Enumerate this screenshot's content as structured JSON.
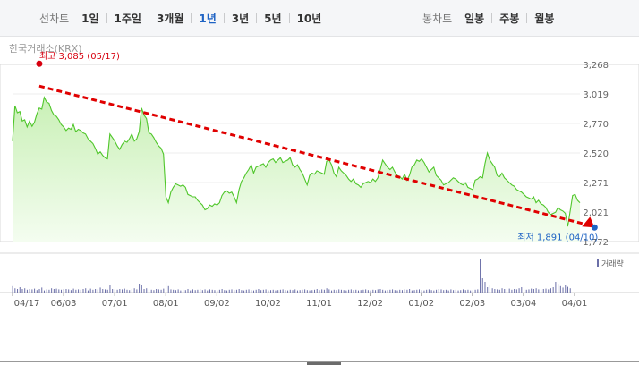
{
  "toolbar": {
    "period_label": "선차트",
    "periods": [
      "1일",
      "1주일",
      "3개월",
      "1년",
      "3년",
      "5년",
      "10년"
    ],
    "active_period": "1년",
    "candle_label": "봉차트",
    "candles": [
      "일봉",
      "주봉",
      "월봉"
    ]
  },
  "source": "한국거래소(KRX)",
  "chart_data": {
    "type": "area",
    "y_ticks": [
      "3,268",
      "3,019",
      "2,770",
      "2,520",
      "2,271",
      "2,021",
      "1,772"
    ],
    "ylim": [
      1772,
      3268
    ],
    "x_tick_labels": [
      "04/17",
      "06/03",
      "07/01",
      "08/01",
      "09/02",
      "10/02",
      "11/01",
      "12/02",
      "01/02",
      "02/03",
      "03/04",
      "04/01"
    ],
    "series": [
      {
        "values": [
          2620,
          2920,
          2860,
          2870,
          2790,
          2800,
          2740,
          2790,
          2745,
          2780,
          2850,
          2900,
          2890,
          2990,
          2950,
          2940,
          2880,
          2840,
          2830,
          2800,
          2760,
          2740,
          2710,
          2730,
          2720,
          2760,
          2700,
          2720,
          2710,
          2690,
          2680,
          2640,
          2620,
          2600,
          2560,
          2510,
          2530,
          2500,
          2480,
          2470,
          2680,
          2650,
          2620,
          2580,
          2550,
          2590,
          2620,
          2610,
          2640,
          2680,
          2620,
          2640,
          2700,
          2900,
          2840,
          2810,
          2690,
          2680,
          2650,
          2610,
          2580,
          2560,
          2510,
          2150,
          2100,
          2190,
          2230,
          2260,
          2250,
          2240,
          2250,
          2230,
          2170,
          2160,
          2150,
          2150,
          2120,
          2100,
          2080,
          2040,
          2050,
          2080,
          2070,
          2090,
          2080,
          2100,
          2160,
          2190,
          2200,
          2180,
          2190,
          2150,
          2100,
          2210,
          2280,
          2310,
          2350,
          2380,
          2420,
          2350,
          2400,
          2410,
          2420,
          2430,
          2400,
          2440,
          2460,
          2470,
          2440,
          2460,
          2480,
          2440,
          2450,
          2460,
          2480,
          2420,
          2400,
          2420,
          2380,
          2350,
          2300,
          2250,
          2330,
          2350,
          2340,
          2370,
          2360,
          2350,
          2340,
          2450,
          2460,
          2420,
          2350,
          2320,
          2400,
          2370,
          2350,
          2330,
          2300,
          2280,
          2300,
          2260,
          2250,
          2230,
          2260,
          2270,
          2280,
          2270,
          2300,
          2280,
          2310,
          2380,
          2460,
          2430,
          2400,
          2380,
          2400,
          2360,
          2330,
          2320,
          2300,
          2340,
          2290,
          2330,
          2400,
          2420,
          2460,
          2450,
          2470,
          2440,
          2400,
          2360,
          2380,
          2400,
          2330,
          2310,
          2290,
          2250,
          2260,
          2270,
          2290,
          2310,
          2300,
          2280,
          2260,
          2250,
          2270,
          2230,
          2220,
          2210,
          2290,
          2300,
          2320,
          2310,
          2430,
          2520,
          2460,
          2430,
          2400,
          2330,
          2320,
          2350,
          2310,
          2290,
          2270,
          2250,
          2240,
          2210,
          2200,
          2190,
          2170,
          2150,
          2140,
          2130,
          2150,
          2100,
          2120,
          2090,
          2080,
          2060,
          2020,
          2000,
          2010,
          2020,
          2060,
          2040,
          2030,
          2010,
          1900,
          2030,
          2160,
          2170,
          2120,
          2100
        ]
      }
    ],
    "volume": [
      0.18,
      0.12,
      0.1,
      0.15,
      0.1,
      0.12,
      0.08,
      0.1,
      0.09,
      0.11,
      0.07,
      0.1,
      0.14,
      0.06,
      0.09,
      0.08,
      0.12,
      0.1,
      0.11,
      0.09,
      0.08,
      0.1,
      0.1,
      0.09,
      0.07,
      0.11,
      0.08,
      0.09,
      0.08,
      0.1,
      0.12,
      0.06,
      0.11,
      0.08,
      0.1,
      0.09,
      0.14,
      0.1,
      0.09,
      0.08,
      0.2,
      0.1,
      0.09,
      0.08,
      0.1,
      0.09,
      0.11,
      0.08,
      0.07,
      0.1,
      0.12,
      0.09,
      0.25,
      0.2,
      0.1,
      0.12,
      0.09,
      0.08,
      0.07,
      0.1,
      0.09,
      0.08,
      0.11,
      0.3,
      0.18,
      0.09,
      0.08,
      0.07,
      0.09,
      0.06,
      0.08,
      0.07,
      0.1,
      0.06,
      0.09,
      0.07,
      0.08,
      0.1,
      0.07,
      0.09,
      0.06,
      0.09,
      0.08,
      0.07,
      0.06,
      0.08,
      0.1,
      0.07,
      0.06,
      0.08,
      0.09,
      0.07,
      0.08,
      0.1,
      0.07,
      0.06,
      0.08,
      0.09,
      0.07,
      0.06,
      0.08,
      0.1,
      0.07,
      0.08,
      0.09,
      0.06,
      0.07,
      0.08,
      0.06,
      0.07,
      0.08,
      0.09,
      0.07,
      0.06,
      0.08,
      0.07,
      0.09,
      0.06,
      0.07,
      0.08,
      0.09,
      0.07,
      0.06,
      0.07,
      0.08,
      0.1,
      0.07,
      0.09,
      0.08,
      0.12,
      0.09,
      0.06,
      0.08,
      0.07,
      0.09,
      0.08,
      0.07,
      0.06,
      0.08,
      0.09,
      0.07,
      0.08,
      0.06,
      0.07,
      0.08,
      0.09,
      0.07,
      0.06,
      0.08,
      0.07,
      0.09,
      0.1,
      0.08,
      0.06,
      0.07,
      0.08,
      0.09,
      0.07,
      0.06,
      0.08,
      0.07,
      0.09,
      0.08,
      0.1,
      0.06,
      0.07,
      0.08,
      0.09,
      0.07,
      0.06,
      0.08,
      0.09,
      0.07,
      0.06,
      0.08,
      0.1,
      0.09,
      0.07,
      0.08,
      0.06,
      0.09,
      0.07,
      0.08,
      0.06,
      0.07,
      0.09,
      0.07,
      0.08,
      0.06,
      0.07,
      0.08,
      0.09,
      0.95,
      0.4,
      0.3,
      0.15,
      0.2,
      0.12,
      0.1,
      0.09,
      0.08,
      0.12,
      0.1,
      0.09,
      0.11,
      0.08,
      0.1,
      0.09,
      0.12,
      0.15,
      0.1,
      0.08,
      0.09,
      0.11,
      0.1,
      0.12,
      0.09,
      0.08,
      0.1,
      0.11,
      0.09,
      0.12,
      0.15,
      0.3,
      0.22,
      0.18,
      0.14,
      0.2,
      0.16,
      0.12
    ],
    "volume_label": "거래량",
    "high_annotation": {
      "text": "최고 3,085 (05/17)",
      "value": 3085,
      "index": 11
    },
    "low_annotation": {
      "text": "최저 1,891 (04/10)",
      "value": 1891,
      "index": 239
    },
    "colors": {
      "line": "#4fc62a",
      "area_top": "#c9f0b6",
      "area_bottom": "#f4fdf0",
      "high": "#d7000f",
      "low": "#1e63c4",
      "trend": "#e00000",
      "volume": "#6b6fa8"
    }
  }
}
